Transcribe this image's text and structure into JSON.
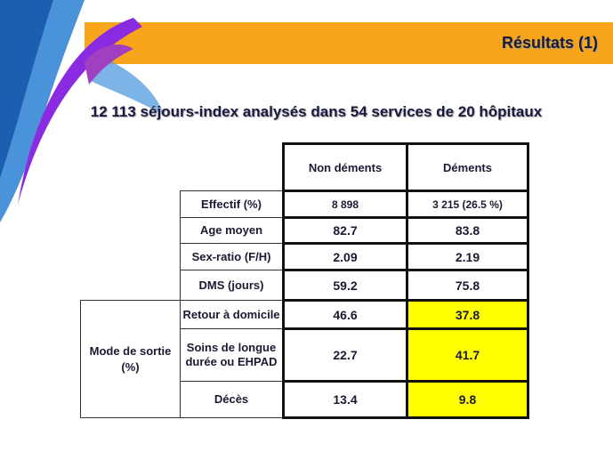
{
  "header": {
    "title": "Résultats (1)",
    "subtitle": "12 113 séjours-index analysés dans 54 services de 20 hôpitaux"
  },
  "table": {
    "columns": [
      "Non déments",
      "Déments"
    ],
    "rows": [
      [
        "Effectif (%)",
        "8 898",
        "3 215 (26.5 %)"
      ],
      [
        "Age moyen",
        "82.7",
        "83.8"
      ],
      [
        "Sex-ratio (F/H)",
        "2.09",
        "2.19"
      ],
      [
        "DMS (jours)",
        "59.2",
        "75.8"
      ],
      [
        "Retour à domicile",
        "46.6",
        "37.8"
      ],
      [
        "Soins de longue durée ou EHPAD",
        "22.7",
        "41.7"
      ],
      [
        "Décès",
        "13.4",
        "9.8"
      ]
    ],
    "group": "Mode de sortie (%)"
  }
}
